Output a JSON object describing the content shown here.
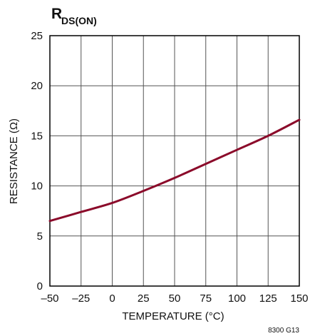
{
  "chart_data": {
    "type": "line",
    "title_main": "R",
    "title_subscript": "DS(ON)",
    "xlabel": "TEMPERATURE (°C)",
    "ylabel": "RESISTANCE (Ω)",
    "figure_code": "8300 G13",
    "xlim": [
      -50,
      150
    ],
    "ylim": [
      0,
      25
    ],
    "x_ticks": [
      -50,
      -25,
      0,
      25,
      50,
      75,
      100,
      125,
      150
    ],
    "x_tick_labels": [
      "–50",
      "–25",
      "0",
      "25",
      "50",
      "75",
      "100",
      "125",
      "150"
    ],
    "y_ticks": [
      0,
      5,
      10,
      15,
      20,
      25
    ],
    "y_tick_labels": [
      "0",
      "5",
      "10",
      "15",
      "20",
      "25"
    ],
    "grid": true,
    "series": [
      {
        "color": "#8b0a2a",
        "x": [
          -50,
          -25,
          0,
          25,
          50,
          75,
          100,
          125,
          150
        ],
        "y": [
          6.5,
          7.4,
          8.3,
          9.5,
          10.8,
          12.2,
          13.6,
          15.0,
          16.6
        ]
      }
    ]
  }
}
